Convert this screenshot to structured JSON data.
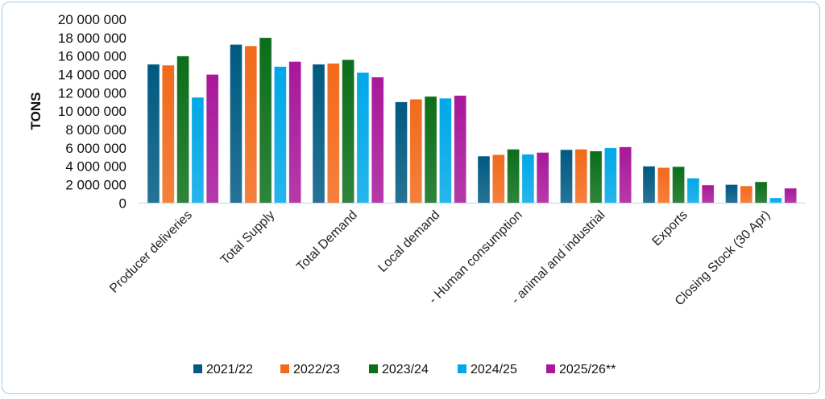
{
  "chart_data": {
    "type": "bar",
    "title": "",
    "xlabel": "",
    "ylabel": "TONS",
    "ylim": [
      0,
      20000000
    ],
    "yticks": [
      0,
      2000000,
      4000000,
      6000000,
      8000000,
      10000000,
      12000000,
      14000000,
      16000000,
      18000000,
      20000000
    ],
    "ytick_labels": [
      "0",
      "2 000 000",
      "4 000 000",
      "6 000 000",
      "8 000 000",
      "10 000 000",
      "12 000 000",
      "14 000 000",
      "16 000 000",
      "18 000 000",
      "20 000 000"
    ],
    "grid": false,
    "legend_position": "bottom",
    "categories": [
      "Producer deliveries",
      "Total Supply",
      "Total Demand",
      "Local demand",
      "- Human consumption",
      "- animal and industrial",
      "Exports",
      "Closing Stock (30 Apr)"
    ],
    "series": [
      {
        "name": "2021/22",
        "color": "#005a82",
        "values": [
          15100000,
          17250000,
          15100000,
          11000000,
          5100000,
          5800000,
          4000000,
          2000000
        ]
      },
      {
        "name": "2022/23",
        "color": "#f26a1b",
        "values": [
          15000000,
          17100000,
          15200000,
          11300000,
          5250000,
          5850000,
          3850000,
          1850000
        ]
      },
      {
        "name": "2023/24",
        "color": "#0b6e1a",
        "values": [
          16000000,
          18000000,
          15600000,
          11600000,
          5850000,
          5650000,
          3950000,
          2300000
        ]
      },
      {
        "name": "2024/25",
        "color": "#00a8e8",
        "values": [
          11500000,
          14850000,
          14200000,
          11400000,
          5300000,
          6000000,
          2700000,
          550000
        ]
      },
      {
        "name": "2025/26**",
        "color": "#a8189a",
        "values": [
          14000000,
          15400000,
          13700000,
          11700000,
          5500000,
          6100000,
          1950000,
          1600000
        ]
      }
    ]
  }
}
